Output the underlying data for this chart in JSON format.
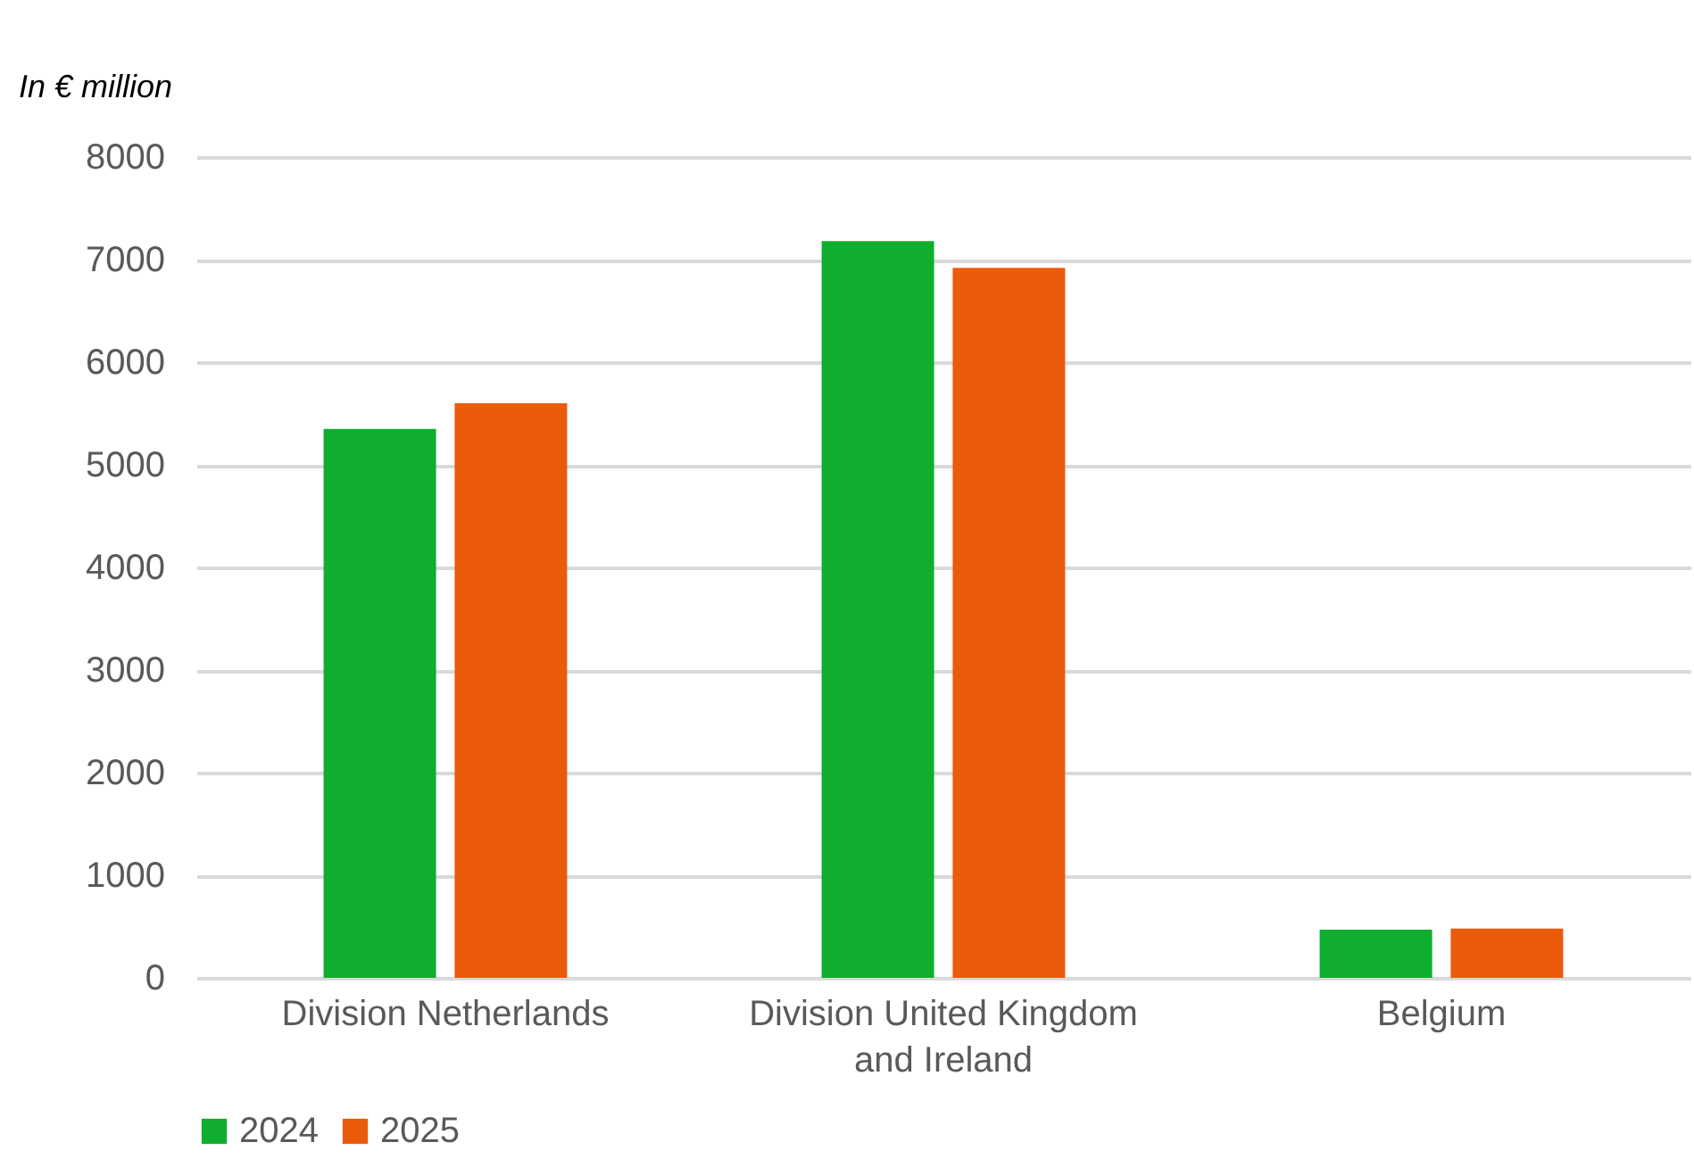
{
  "chart_data": {
    "type": "bar",
    "ylabel": "In € million",
    "categories": [
      "Division Netherlands",
      "Division United Kingdom and Ireland",
      "Belgium"
    ],
    "series": [
      {
        "name": "2024",
        "color": "#0fae2e",
        "values": [
          5350,
          7180,
          470
        ]
      },
      {
        "name": "2025",
        "color": "#ea5b0c",
        "values": [
          5600,
          6920,
          480
        ]
      }
    ],
    "ylim": [
      0,
      8000
    ],
    "yticks": [
      0,
      1000,
      2000,
      3000,
      4000,
      5000,
      6000,
      7000,
      8000
    ],
    "grid": "y",
    "legend": "bottom"
  }
}
